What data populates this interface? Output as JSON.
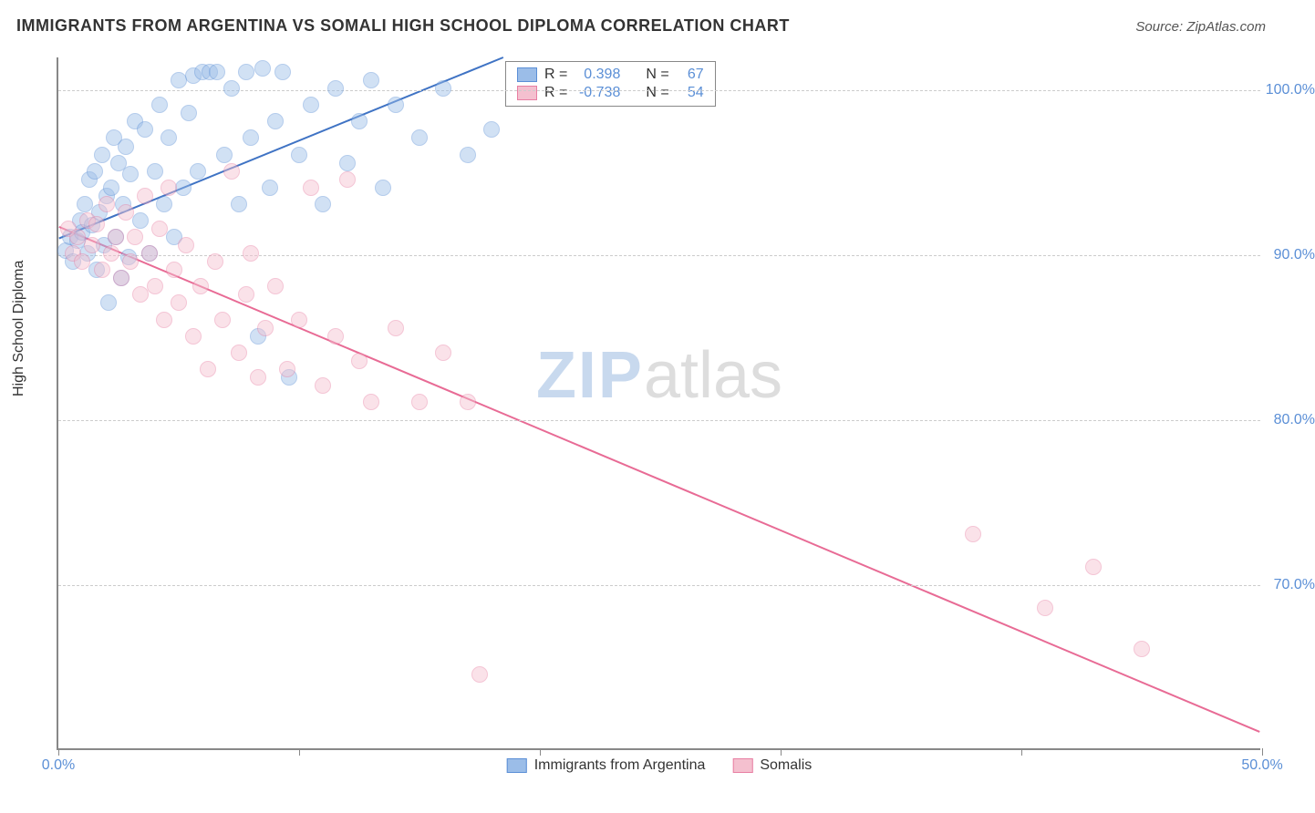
{
  "header": {
    "title": "IMMIGRANTS FROM ARGENTINA VS SOMALI HIGH SCHOOL DIPLOMA CORRELATION CHART",
    "source_prefix": "Source: ",
    "source_name": "ZipAtlas.com"
  },
  "chart": {
    "type": "scatter",
    "y_axis_label": "High School Diploma",
    "xlim": [
      0,
      50
    ],
    "ylim": [
      60,
      102
    ],
    "y_ticks": [
      70,
      80,
      90,
      100
    ],
    "y_tick_labels": [
      "70.0%",
      "80.0%",
      "90.0%",
      "100.0%"
    ],
    "x_ticks": [
      0,
      10,
      20,
      30,
      40,
      50
    ],
    "x_visible_labels": {
      "0": "0.0%",
      "50": "50.0%"
    },
    "grid_color": "#cccccc",
    "axis_color": "#888888",
    "background_color": "#ffffff",
    "marker_radius": 9,
    "marker_opacity": 0.45,
    "series": [
      {
        "id": "argentina",
        "label": "Immigrants from Argentina",
        "color_fill": "#9bbde8",
        "color_stroke": "#5b8fd6",
        "line_color": "#3f73c4",
        "line_width": 2,
        "r_value": "0.398",
        "n_value": "67",
        "trend": {
          "x1": 0,
          "y1": 91.0,
          "x2": 18.5,
          "y2": 102.0
        },
        "points": [
          [
            0.3,
            90.2
          ],
          [
            0.5,
            91.0
          ],
          [
            0.6,
            89.5
          ],
          [
            0.8,
            90.8
          ],
          [
            0.9,
            92.0
          ],
          [
            1.0,
            91.3
          ],
          [
            1.1,
            93.0
          ],
          [
            1.2,
            90.0
          ],
          [
            1.3,
            94.5
          ],
          [
            1.4,
            91.7
          ],
          [
            1.5,
            95.0
          ],
          [
            1.6,
            89.0
          ],
          [
            1.7,
            92.5
          ],
          [
            1.8,
            96.0
          ],
          [
            1.9,
            90.5
          ],
          [
            2.0,
            93.5
          ],
          [
            2.1,
            87.0
          ],
          [
            2.2,
            94.0
          ],
          [
            2.3,
            97.0
          ],
          [
            2.4,
            91.0
          ],
          [
            2.5,
            95.5
          ],
          [
            2.6,
            88.5
          ],
          [
            2.7,
            93.0
          ],
          [
            2.8,
            96.5
          ],
          [
            2.9,
            89.8
          ],
          [
            3.0,
            94.8
          ],
          [
            3.2,
            98.0
          ],
          [
            3.4,
            92.0
          ],
          [
            3.6,
            97.5
          ],
          [
            3.8,
            90.0
          ],
          [
            4.0,
            95.0
          ],
          [
            4.2,
            99.0
          ],
          [
            4.4,
            93.0
          ],
          [
            4.6,
            97.0
          ],
          [
            4.8,
            91.0
          ],
          [
            5.0,
            100.5
          ],
          [
            5.2,
            94.0
          ],
          [
            5.4,
            98.5
          ],
          [
            5.6,
            100.8
          ],
          [
            5.8,
            95.0
          ],
          [
            6.0,
            101.0
          ],
          [
            6.3,
            101.0
          ],
          [
            6.6,
            101.0
          ],
          [
            6.9,
            96.0
          ],
          [
            7.2,
            100.0
          ],
          [
            7.5,
            93.0
          ],
          [
            7.8,
            101.0
          ],
          [
            8.0,
            97.0
          ],
          [
            8.3,
            85.0
          ],
          [
            8.5,
            101.2
          ],
          [
            8.8,
            94.0
          ],
          [
            9.0,
            98.0
          ],
          [
            9.3,
            101.0
          ],
          [
            9.6,
            82.5
          ],
          [
            10.0,
            96.0
          ],
          [
            10.5,
            99.0
          ],
          [
            11.0,
            93.0
          ],
          [
            11.5,
            100.0
          ],
          [
            12.0,
            95.5
          ],
          [
            12.5,
            98.0
          ],
          [
            13.0,
            100.5
          ],
          [
            13.5,
            94.0
          ],
          [
            14.0,
            99.0
          ],
          [
            15.0,
            97.0
          ],
          [
            16.0,
            100.0
          ],
          [
            17.0,
            96.0
          ],
          [
            18.0,
            97.5
          ]
        ]
      },
      {
        "id": "somalis",
        "label": "Somalis",
        "color_fill": "#f4c0cf",
        "color_stroke": "#e87fa3",
        "line_color": "#e86b95",
        "line_width": 2,
        "r_value": "-0.738",
        "n_value": "54",
        "trend": {
          "x1": 0,
          "y1": 91.7,
          "x2": 50,
          "y2": 61.0
        },
        "points": [
          [
            0.4,
            91.5
          ],
          [
            0.6,
            90.0
          ],
          [
            0.8,
            91.0
          ],
          [
            1.0,
            89.5
          ],
          [
            1.2,
            92.0
          ],
          [
            1.4,
            90.5
          ],
          [
            1.6,
            91.8
          ],
          [
            1.8,
            89.0
          ],
          [
            2.0,
            93.0
          ],
          [
            2.2,
            90.0
          ],
          [
            2.4,
            91.0
          ],
          [
            2.6,
            88.5
          ],
          [
            2.8,
            92.5
          ],
          [
            3.0,
            89.5
          ],
          [
            3.2,
            91.0
          ],
          [
            3.4,
            87.5
          ],
          [
            3.6,
            93.5
          ],
          [
            3.8,
            90.0
          ],
          [
            4.0,
            88.0
          ],
          [
            4.2,
            91.5
          ],
          [
            4.4,
            86.0
          ],
          [
            4.6,
            94.0
          ],
          [
            4.8,
            89.0
          ],
          [
            5.0,
            87.0
          ],
          [
            5.3,
            90.5
          ],
          [
            5.6,
            85.0
          ],
          [
            5.9,
            88.0
          ],
          [
            6.2,
            83.0
          ],
          [
            6.5,
            89.5
          ],
          [
            6.8,
            86.0
          ],
          [
            7.2,
            95.0
          ],
          [
            7.5,
            84.0
          ],
          [
            7.8,
            87.5
          ],
          [
            8.0,
            90.0
          ],
          [
            8.3,
            82.5
          ],
          [
            8.6,
            85.5
          ],
          [
            9.0,
            88.0
          ],
          [
            9.5,
            83.0
          ],
          [
            10.0,
            86.0
          ],
          [
            10.5,
            94.0
          ],
          [
            11.0,
            82.0
          ],
          [
            11.5,
            85.0
          ],
          [
            12.0,
            94.5
          ],
          [
            12.5,
            83.5
          ],
          [
            13.0,
            81.0
          ],
          [
            14.0,
            85.5
          ],
          [
            15.0,
            81.0
          ],
          [
            16.0,
            84.0
          ],
          [
            17.0,
            81.0
          ],
          [
            17.5,
            64.5
          ],
          [
            38.0,
            73.0
          ],
          [
            41.0,
            68.5
          ],
          [
            43.0,
            71.0
          ],
          [
            45.0,
            66.0
          ]
        ]
      }
    ]
  },
  "legend_stats": {
    "r_prefix": "R =",
    "n_prefix": "N ="
  },
  "watermark": {
    "zip": "ZIP",
    "atlas": "atlas"
  }
}
